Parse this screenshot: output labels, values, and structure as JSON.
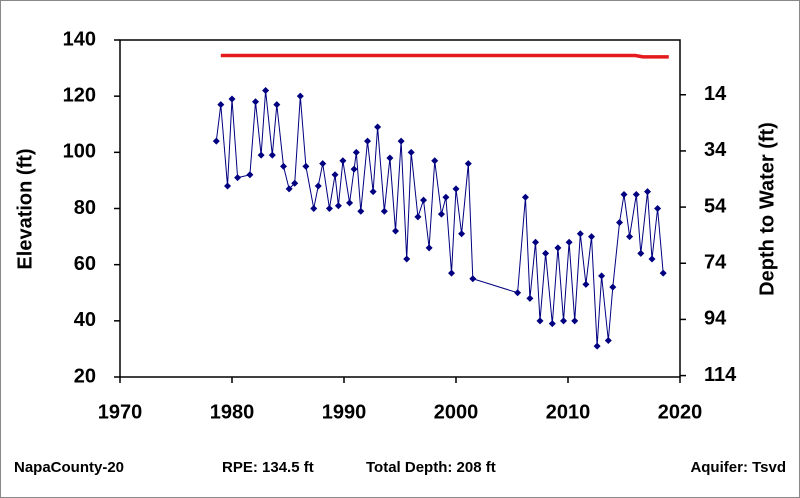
{
  "chart_data": {
    "type": "line",
    "y_label": "Elevation (ft)",
    "y2_label": "Depth to Water (ft)",
    "xlim": [
      1970,
      2020
    ],
    "xticks": [
      1970,
      1980,
      1990,
      2000,
      2010,
      2020
    ],
    "ylim": [
      20,
      140
    ],
    "yticks": [
      20,
      40,
      60,
      80,
      100,
      120,
      140
    ],
    "y2lim": [
      -5.5,
      114.5
    ],
    "y2ticks": [
      14,
      34,
      54,
      74,
      94,
      114
    ],
    "y2_inverted": true,
    "grid": false,
    "series": [
      {
        "color": "#e41a1c",
        "markers": false,
        "x": [
          1979,
          2016,
          2016.7,
          2019
        ],
        "values": [
          134.5,
          134.5,
          134,
          134
        ]
      },
      {
        "color": "#000080",
        "markers": true,
        "x": [
          1978.6,
          1979.0,
          1979.6,
          1980.0,
          1980.5,
          1981.6,
          1982.1,
          1982.6,
          1983.0,
          1983.6,
          1984.0,
          1984.6,
          1985.1,
          1985.6,
          1986.1,
          1986.6,
          1987.3,
          1987.7,
          1988.1,
          1988.7,
          1989.2,
          1989.5,
          1989.9,
          1990.5,
          1990.9,
          1991.1,
          1991.5,
          1992.1,
          1992.6,
          1993.0,
          1993.6,
          1994.1,
          1994.6,
          1995.1,
          1995.6,
          1996.0,
          1996.6,
          1997.1,
          1997.6,
          1998.1,
          1998.7,
          1999.1,
          1999.6,
          2000.0,
          2000.5,
          2001.1,
          2001.5,
          2005.5,
          2006.2,
          2006.6,
          2007.1,
          2007.5,
          2008.0,
          2008.6,
          2009.1,
          2009.6,
          2010.1,
          2010.6,
          2011.1,
          2011.6,
          2012.1,
          2012.6,
          2013.0,
          2013.6,
          2014.0,
          2014.6,
          2015.0,
          2015.5,
          2016.1,
          2016.5,
          2017.1,
          2017.5,
          2018.0,
          2018.5
        ],
        "values": [
          104,
          117,
          88,
          119,
          91,
          92,
          118,
          99,
          122,
          99,
          117,
          95,
          87,
          89,
          120,
          95,
          80,
          88,
          96,
          80,
          92,
          81,
          97,
          82,
          94,
          100,
          79,
          104,
          86,
          109,
          79,
          98,
          72,
          104,
          62,
          100,
          77,
          83,
          66,
          97,
          78,
          84,
          57,
          87,
          71,
          96,
          55,
          50,
          84,
          48,
          68,
          40,
          64,
          39,
          66,
          40,
          68,
          40,
          71,
          53,
          70,
          31,
          56,
          33,
          52,
          75,
          85,
          70,
          85,
          64,
          86,
          62,
          80,
          57
        ]
      }
    ]
  },
  "footer": {
    "well": "NapaCounty-20",
    "rpe": "RPE: 134.5 ft",
    "depth": "Total Depth: 208 ft",
    "aquifer": "Aquifer: Tsvd"
  }
}
